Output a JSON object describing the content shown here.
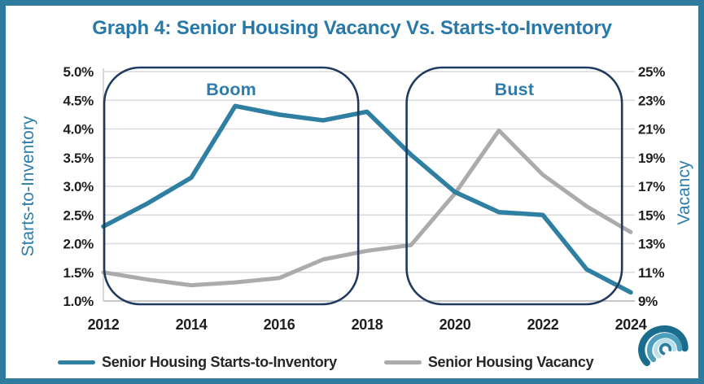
{
  "title": "Graph 4: Senior Housing Vacancy Vs. Starts-to-Inventory",
  "frame": {
    "border_color": "#2e7b9d",
    "background": "#ffffff",
    "title_color": "#2878a8"
  },
  "chart_data": {
    "type": "line",
    "x": [
      2012,
      2013,
      2014,
      2015,
      2016,
      2017,
      2018,
      2019,
      2020,
      2021,
      2022,
      2023,
      2024
    ],
    "x_range": [
      2012,
      2024
    ],
    "x_tick_labels": [
      "2012",
      "2014",
      "2016",
      "2018",
      "2020",
      "2022",
      "2024"
    ],
    "grid": true,
    "legend_position": "bottom",
    "left_axis": {
      "title": "Starts-to-Inventory",
      "min": 1.0,
      "max": 5.0,
      "tick_labels": [
        "5.0%",
        "4.5%",
        "4.0%",
        "3.5%",
        "3.0%",
        "2.5%",
        "2.0%",
        "1.5%",
        "1.0%"
      ],
      "tick_values": [
        5.0,
        4.5,
        4.0,
        3.5,
        3.0,
        2.5,
        2.0,
        1.5,
        1.0
      ]
    },
    "right_axis": {
      "title": "Vacancy",
      "min": 9,
      "max": 25,
      "tick_labels": [
        "25%",
        "23%",
        "21%",
        "19%",
        "17%",
        "15%",
        "13%",
        "11%",
        "9%"
      ],
      "tick_values": [
        25,
        23,
        21,
        19,
        17,
        15,
        13,
        11,
        9
      ]
    },
    "series": [
      {
        "name": "Senior Housing Starts-to-Inventory",
        "axis": "left",
        "color": "#2e7fa2",
        "width": 5.5,
        "values": [
          2.3,
          2.7,
          3.15,
          4.4,
          4.25,
          4.15,
          4.3,
          3.55,
          2.9,
          2.55,
          2.5,
          1.55,
          1.15
        ]
      },
      {
        "name": "Senior Housing Vacancy",
        "axis": "right",
        "color": "#ababab",
        "width": 5,
        "values": [
          11.0,
          10.5,
          10.1,
          10.3,
          10.6,
          11.9,
          12.5,
          12.9,
          16.5,
          20.9,
          17.8,
          15.6,
          13.8
        ]
      }
    ],
    "annotations": [
      {
        "label": "Boom",
        "year_start": 2012.02,
        "year_end": 2017.8,
        "border_color": "#1f3a5e",
        "label_color": "#2e7bab"
      },
      {
        "label": "Bust",
        "year_start": 2018.9,
        "year_end": 2023.8,
        "border_color": "#1f3a5e",
        "label_color": "#2e7bab"
      }
    ]
  },
  "legend": {
    "items": [
      {
        "label": "Senior Housing Starts-to-Inventory",
        "color": "#2e7fa2"
      },
      {
        "label": "Senior Housing Vacancy",
        "color": "#ababab"
      }
    ]
  },
  "logo": {
    "name": "wave-logo",
    "colors": [
      "#1b6d90",
      "#4da0bd",
      "#bce0ea",
      "#2b7f9e"
    ]
  }
}
